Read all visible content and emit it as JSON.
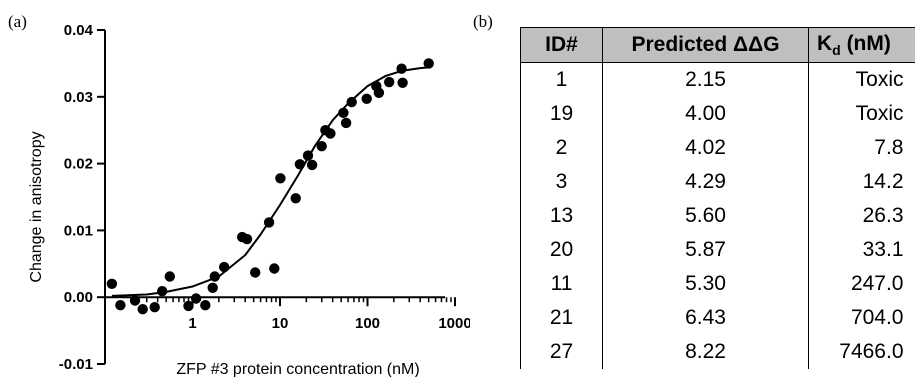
{
  "panel_a_label": "(a)",
  "panel_b_label": "(b)",
  "chart_data": {
    "type": "scatter",
    "title": "",
    "xlabel": "ZFP #3 protein concentration (nM)",
    "ylabel": "Change in anisotropy",
    "xscale": "log",
    "xlim": [
      0.1,
      1000
    ],
    "ylim": [
      -0.01,
      0.04
    ],
    "xticks": [
      1,
      10,
      100,
      1000
    ],
    "xtick_labels": [
      "1",
      "10",
      "100",
      "1000"
    ],
    "yticks": [
      -0.01,
      0.0,
      0.01,
      0.02,
      0.03,
      0.04
    ],
    "ytick_labels": [
      "-0.01",
      "0.00",
      "0.01",
      "0.02",
      "0.03",
      "0.04"
    ],
    "grid": false,
    "series": [
      {
        "type": "scatter",
        "x": [
          0.12,
          0.15,
          0.22,
          0.27,
          0.37,
          0.45,
          0.55,
          0.9,
          1.1,
          1.4,
          1.7,
          1.8,
          2.3,
          3.7,
          4.2,
          5.2,
          7.5,
          8.6,
          10.1,
          15.1,
          16.9,
          20.9,
          23.3,
          30.0,
          33.0,
          37.7,
          53.0,
          57.0,
          66.0,
          98.0,
          126.0,
          135.0,
          177.0,
          245.0,
          252.0,
          500.0
        ],
        "y": [
          0.002,
          -0.0012,
          -0.0005,
          -0.0018,
          -0.0015,
          0.0009,
          0.0031,
          -0.0013,
          -0.0002,
          -0.0012,
          0.0014,
          0.0031,
          0.0045,
          0.009,
          0.0087,
          0.0037,
          0.0112,
          0.0043,
          0.0178,
          0.0148,
          0.0199,
          0.0212,
          0.0198,
          0.0226,
          0.025,
          0.0245,
          0.0276,
          0.0261,
          0.0292,
          0.0297,
          0.0316,
          0.0306,
          0.0322,
          0.0342,
          0.0321,
          0.035
        ]
      },
      {
        "type": "line",
        "fit": "sigmoidal",
        "x": [
          0.12,
          0.3,
          0.5,
          1.0,
          2.0,
          4.0,
          6.0,
          10.0,
          16.0,
          25.0,
          40.0,
          60.0,
          100.0,
          160.0,
          250.0,
          400.0,
          500.0
        ],
        "y": [
          0.0002,
          0.0004,
          0.0008,
          0.0016,
          0.0031,
          0.0063,
          0.0094,
          0.0138,
          0.0182,
          0.0226,
          0.0265,
          0.029,
          0.0316,
          0.0331,
          0.0339,
          0.0343,
          0.0344
        ]
      }
    ]
  },
  "table": {
    "headers": {
      "id": "ID#",
      "ddg": "Predicted ΔΔG",
      "kd_main": "K",
      "kd_sub": "d",
      "kd_unit": " (nM)"
    },
    "rows": [
      {
        "id": "1",
        "ddg": "2.15",
        "kd": "Toxic"
      },
      {
        "id": "19",
        "ddg": "4.00",
        "kd": "Toxic"
      },
      {
        "id": "2",
        "ddg": "4.02",
        "kd": "7.8"
      },
      {
        "id": "3",
        "ddg": "4.29",
        "kd": "14.2"
      },
      {
        "id": "13",
        "ddg": "5.60",
        "kd": "26.3"
      },
      {
        "id": "20",
        "ddg": "5.87",
        "kd": "33.1"
      },
      {
        "id": "11",
        "ddg": "5.30",
        "kd": "247.0"
      },
      {
        "id": "21",
        "ddg": "6.43",
        "kd": "704.0"
      },
      {
        "id": "27",
        "ddg": "8.22",
        "kd": "7466.0"
      }
    ]
  }
}
